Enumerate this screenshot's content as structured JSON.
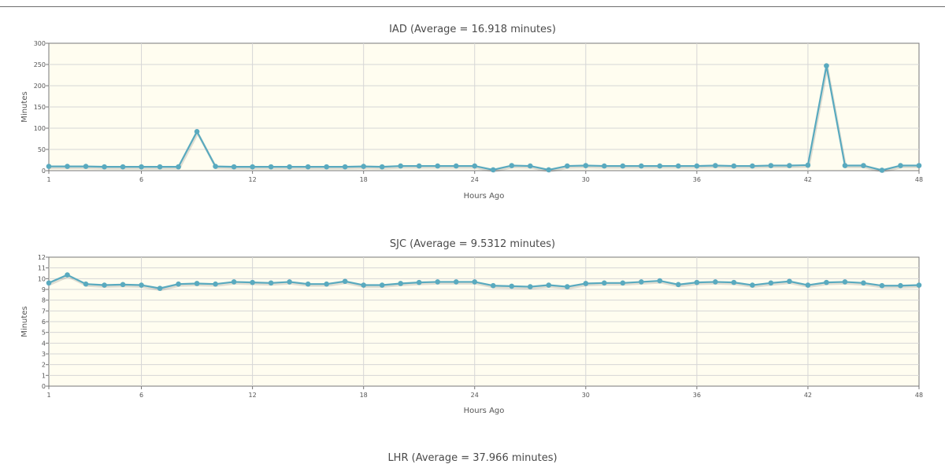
{
  "colors": {
    "plot_bg": "#fffdf0",
    "grid": "#d6d6d6",
    "series": "#59aabf",
    "axis": "#777777"
  },
  "chart_data": [
    {
      "type": "line",
      "title": "IAD (Average = 16.918 minutes)",
      "xlabel": "Hours Ago",
      "ylabel": "Minutes",
      "xlim": [
        1,
        48
      ],
      "ylim": [
        0,
        300
      ],
      "xticks": [
        1,
        6,
        12,
        18,
        24,
        30,
        36,
        42,
        48
      ],
      "yticks": [
        0,
        50,
        100,
        150,
        200,
        250,
        300
      ],
      "grid": true,
      "x": [
        1,
        2,
        3,
        4,
        5,
        6,
        7,
        8,
        9,
        10,
        11,
        12,
        13,
        14,
        15,
        16,
        17,
        18,
        19,
        20,
        21,
        22,
        23,
        24,
        25,
        26,
        27,
        28,
        29,
        30,
        31,
        32,
        33,
        34,
        35,
        36,
        37,
        38,
        39,
        40,
        41,
        42,
        43,
        44,
        45,
        46,
        47,
        48
      ],
      "series": [
        {
          "values": [
            10,
            10,
            10,
            9,
            9,
            9,
            9,
            9,
            92,
            10,
            9,
            9,
            9,
            9,
            9,
            9,
            9,
            10,
            9,
            11,
            11,
            11,
            11,
            11,
            2,
            12,
            11,
            2,
            11,
            12,
            11,
            11,
            11,
            11,
            11,
            11,
            12,
            11,
            11,
            12,
            12,
            13,
            247,
            12,
            12,
            1,
            12,
            12
          ]
        }
      ]
    },
    {
      "type": "line",
      "title": "SJC (Average = 9.5312 minutes)",
      "xlabel": "Hours Ago",
      "ylabel": "Minutes",
      "xlim": [
        1,
        48
      ],
      "ylim": [
        0,
        12
      ],
      "xticks": [
        1,
        6,
        12,
        18,
        24,
        30,
        36,
        42,
        48
      ],
      "yticks": [
        0,
        1,
        2,
        3,
        4,
        5,
        6,
        7,
        8,
        9,
        10,
        11,
        12
      ],
      "grid": true,
      "x": [
        1,
        2,
        3,
        4,
        5,
        6,
        7,
        8,
        9,
        10,
        11,
        12,
        13,
        14,
        15,
        16,
        17,
        18,
        19,
        20,
        21,
        22,
        23,
        24,
        25,
        26,
        27,
        28,
        29,
        30,
        31,
        32,
        33,
        34,
        35,
        36,
        37,
        38,
        39,
        40,
        41,
        42,
        43,
        44,
        45,
        46,
        47,
        48
      ],
      "series": [
        {
          "values": [
            9.6,
            10.35,
            9.5,
            9.4,
            9.45,
            9.4,
            9.1,
            9.5,
            9.55,
            9.5,
            9.7,
            9.65,
            9.6,
            9.7,
            9.5,
            9.5,
            9.75,
            9.4,
            9.4,
            9.55,
            9.65,
            9.7,
            9.7,
            9.7,
            9.35,
            9.3,
            9.25,
            9.4,
            9.25,
            9.55,
            9.6,
            9.6,
            9.7,
            9.8,
            9.45,
            9.65,
            9.7,
            9.65,
            9.4,
            9.6,
            9.75,
            9.4,
            9.65,
            9.7,
            9.6,
            9.35,
            9.35,
            9.4
          ]
        }
      ]
    },
    {
      "type": "line",
      "title": "LHR (Average = 37.966 minutes)"
    }
  ]
}
